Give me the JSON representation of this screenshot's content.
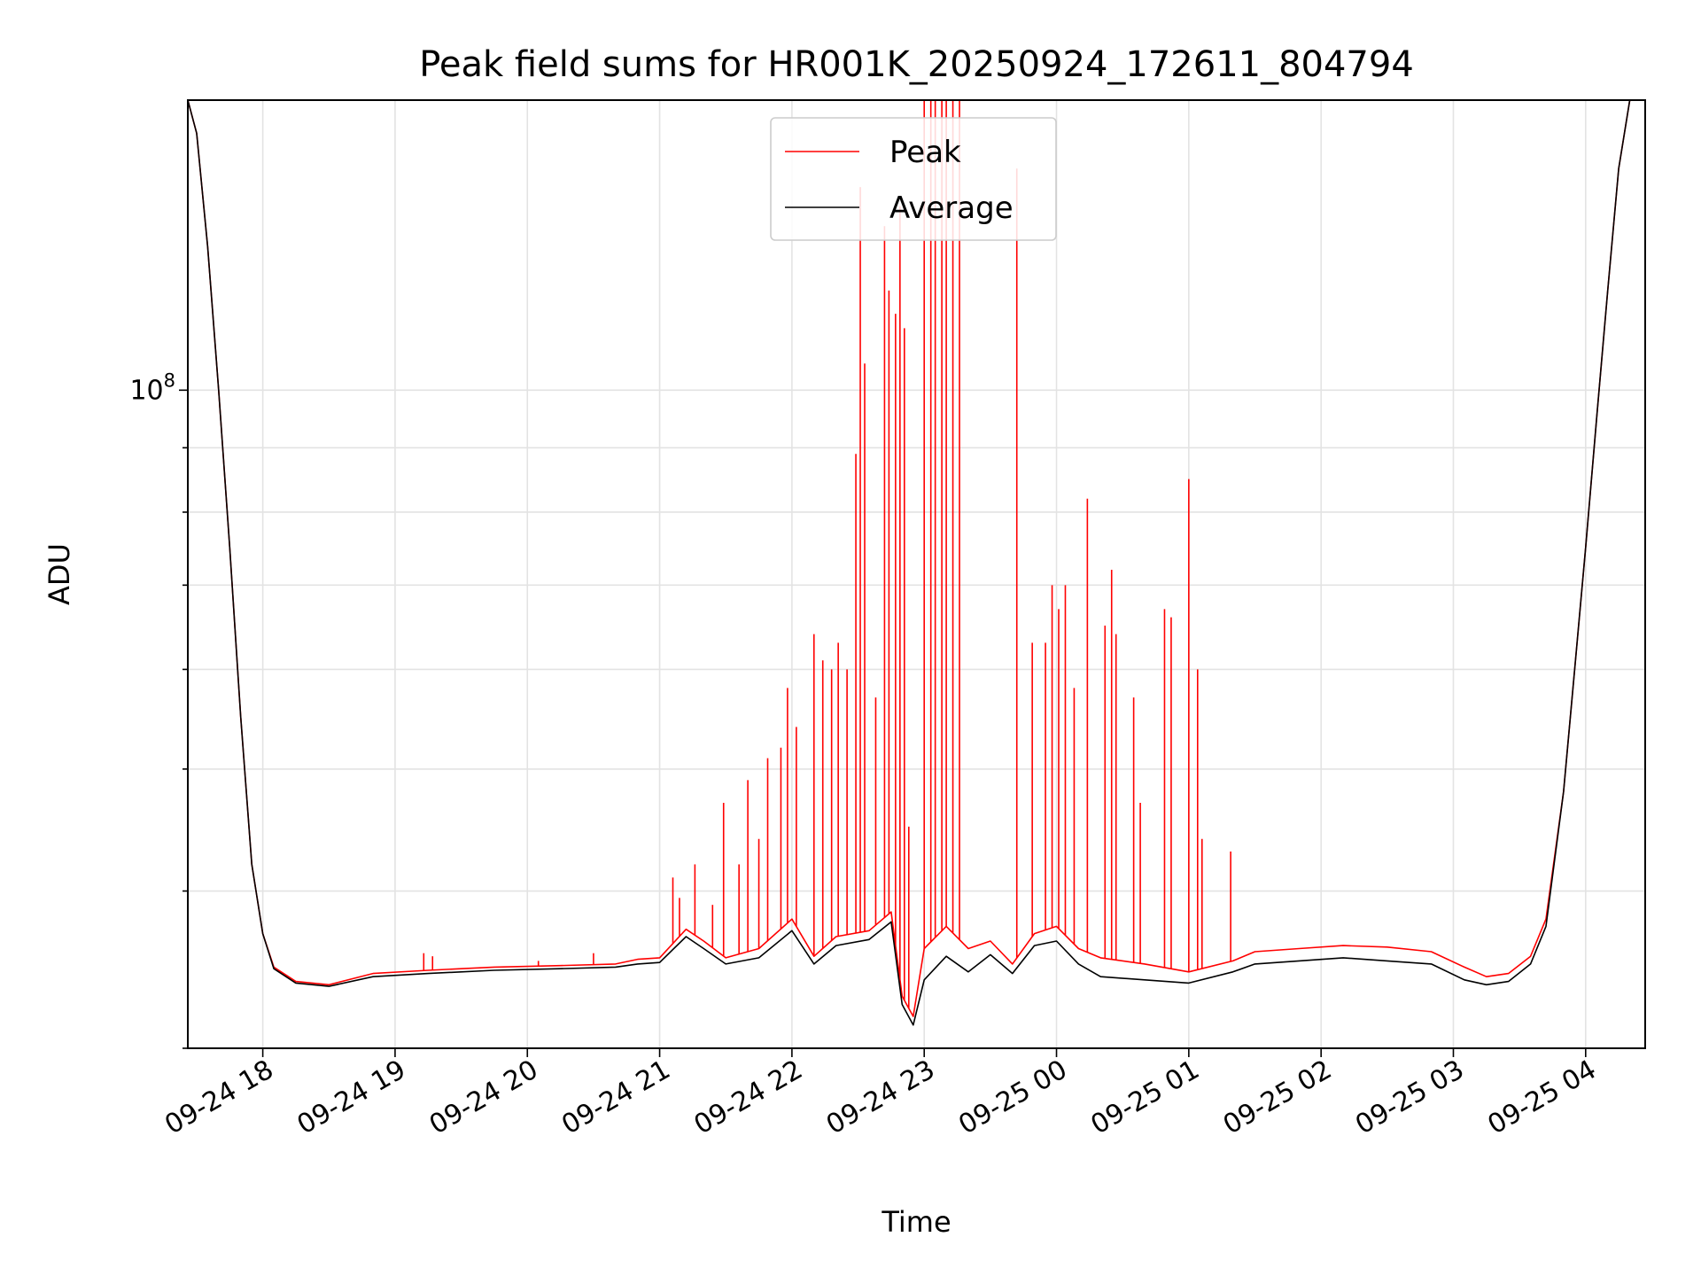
{
  "chart_data": {
    "type": "line",
    "title": "Peak field sums for HR001K_20250924_172611_804794",
    "xlabel": "Time",
    "ylabel": "ADU",
    "yscale": "log",
    "grid": true,
    "legend_position": "top-center",
    "x_range": [
      "2025-09-24T17:26",
      "2025-09-25T04:27"
    ],
    "x_tick_labels": [
      "09-24 18",
      "09-24 19",
      "09-24 20",
      "09-24 21",
      "09-24 22",
      "09-24 23",
      "09-25 00",
      "09-25 01",
      "09-25 02",
      "09-25 03",
      "09-25 04"
    ],
    "y_tick_label": {
      "base": "10",
      "exponent": "8"
    },
    "ylim": [
      30000000,
      170000000
    ],
    "series": [
      {
        "name": "Peak",
        "color": "#ff0000",
        "points": [
          [
            "2025-09-24T17:26",
            170000000
          ],
          [
            "2025-09-24T17:30",
            160000000
          ],
          [
            "2025-09-24T17:35",
            130000000
          ],
          [
            "2025-09-24T17:40",
            100000000
          ],
          [
            "2025-09-24T17:45",
            75000000
          ],
          [
            "2025-09-24T17:50",
            55000000
          ],
          [
            "2025-09-24T17:55",
            42000000
          ],
          [
            "2025-09-24T18:00",
            37000000
          ],
          [
            "2025-09-24T18:05",
            34800000
          ],
          [
            "2025-09-24T18:15",
            33900000
          ],
          [
            "2025-09-24T18:30",
            33700000
          ],
          [
            "2025-09-24T18:50",
            34400000
          ],
          [
            "2025-09-24T19:15",
            34600000
          ],
          [
            "2025-09-24T19:30",
            34700000
          ],
          [
            "2025-09-24T19:45",
            34800000
          ],
          [
            "2025-09-24T20:15",
            34900000
          ],
          [
            "2025-09-24T20:40",
            35000000
          ],
          [
            "2025-09-24T20:50",
            35300000
          ],
          [
            "2025-09-24T21:00",
            35400000
          ],
          [
            "2025-09-24T21:12",
            37300000
          ],
          [
            "2025-09-24T21:20",
            36500000
          ],
          [
            "2025-09-24T21:30",
            35400000
          ],
          [
            "2025-09-24T21:45",
            36000000
          ],
          [
            "2025-09-24T22:00",
            38000000
          ],
          [
            "2025-09-24T22:10",
            35500000
          ],
          [
            "2025-09-24T22:20",
            36800000
          ],
          [
            "2025-09-24T22:35",
            37200000
          ],
          [
            "2025-09-24T22:45",
            38500000
          ],
          [
            "2025-09-24T22:50",
            33000000
          ],
          [
            "2025-09-24T22:55",
            31800000
          ],
          [
            "2025-09-24T23:00",
            36000000
          ],
          [
            "2025-09-24T23:10",
            37500000
          ],
          [
            "2025-09-24T23:20",
            36000000
          ],
          [
            "2025-09-24T23:30",
            36500000
          ],
          [
            "2025-09-24T23:40",
            35000000
          ],
          [
            "2025-09-24T23:50",
            37000000
          ],
          [
            "2025-09-25T00:00",
            37500000
          ],
          [
            "2025-09-25T00:10",
            36000000
          ],
          [
            "2025-09-25T00:20",
            35400000
          ],
          [
            "2025-09-25T00:40",
            35000000
          ],
          [
            "2025-09-25T01:00",
            34500000
          ],
          [
            "2025-09-25T01:20",
            35200000
          ],
          [
            "2025-09-25T01:30",
            35800000
          ],
          [
            "2025-09-25T01:50",
            36000000
          ],
          [
            "2025-09-25T02:10",
            36200000
          ],
          [
            "2025-09-25T02:30",
            36100000
          ],
          [
            "2025-09-25T02:50",
            35800000
          ],
          [
            "2025-09-25T03:05",
            34800000
          ],
          [
            "2025-09-25T03:15",
            34200000
          ],
          [
            "2025-09-25T03:25",
            34400000
          ],
          [
            "2025-09-25T03:35",
            35500000
          ],
          [
            "2025-09-25T03:42",
            38000000
          ],
          [
            "2025-09-25T03:50",
            48000000
          ],
          [
            "2025-09-25T03:55",
            60000000
          ],
          [
            "2025-09-25T04:00",
            75000000
          ],
          [
            "2025-09-25T04:05",
            95000000
          ],
          [
            "2025-09-25T04:10",
            120000000
          ],
          [
            "2025-09-25T04:15",
            150000000
          ],
          [
            "2025-09-25T04:20",
            170000000
          ]
        ],
        "spikes": [
          [
            "2025-09-24T19:13",
            35700000
          ],
          [
            "2025-09-24T19:17",
            35500000
          ],
          [
            "2025-09-24T20:05",
            35200000
          ],
          [
            "2025-09-24T20:30",
            35700000
          ],
          [
            "2025-09-24T21:06",
            41000000
          ],
          [
            "2025-09-24T21:09",
            39500000
          ],
          [
            "2025-09-24T21:16",
            42000000
          ],
          [
            "2025-09-24T21:24",
            39000000
          ],
          [
            "2025-09-24T21:29",
            47000000
          ],
          [
            "2025-09-24T21:36",
            42000000
          ],
          [
            "2025-09-24T21:40",
            49000000
          ],
          [
            "2025-09-24T21:45",
            44000000
          ],
          [
            "2025-09-24T21:49",
            51000000
          ],
          [
            "2025-09-24T21:55",
            52000000
          ],
          [
            "2025-09-24T21:58",
            58000000
          ],
          [
            "2025-09-24T22:02",
            54000000
          ],
          [
            "2025-09-24T22:10",
            64000000
          ],
          [
            "2025-09-24T22:14",
            61000000
          ],
          [
            "2025-09-24T22:18",
            60000000
          ],
          [
            "2025-09-24T22:21",
            63000000
          ],
          [
            "2025-09-24T22:25",
            60000000
          ],
          [
            "2025-09-24T22:29",
            89000000
          ],
          [
            "2025-09-24T22:31",
            145000000
          ],
          [
            "2025-09-24T22:33",
            105000000
          ],
          [
            "2025-09-24T22:38",
            57000000
          ],
          [
            "2025-09-24T22:42",
            135000000
          ],
          [
            "2025-09-24T22:44",
            120000000
          ],
          [
            "2025-09-24T22:47",
            115000000
          ],
          [
            "2025-09-24T22:49",
            140000000
          ],
          [
            "2025-09-24T22:51",
            112000000
          ],
          [
            "2025-09-24T22:53",
            45000000
          ],
          [
            "2025-09-24T23:00",
            170000000
          ],
          [
            "2025-09-24T23:03",
            170000000
          ],
          [
            "2025-09-24T23:05",
            170000000
          ],
          [
            "2025-09-24T23:08",
            170000000
          ],
          [
            "2025-09-24T23:10",
            170000000
          ],
          [
            "2025-09-24T23:13",
            170000000
          ],
          [
            "2025-09-24T23:16",
            170000000
          ],
          [
            "2025-09-24T23:42",
            150000000
          ],
          [
            "2025-09-24T23:49",
            63000000
          ],
          [
            "2025-09-24T23:55",
            63000000
          ],
          [
            "2025-09-24T23:58",
            70000000
          ],
          [
            "2025-09-25T00:01",
            67000000
          ],
          [
            "2025-09-25T00:04",
            70000000
          ],
          [
            "2025-09-25T00:08",
            58000000
          ],
          [
            "2025-09-25T00:14",
            82000000
          ],
          [
            "2025-09-25T00:22",
            65000000
          ],
          [
            "2025-09-25T00:25",
            72000000
          ],
          [
            "2025-09-25T00:27",
            64000000
          ],
          [
            "2025-09-25T00:35",
            57000000
          ],
          [
            "2025-09-25T00:38",
            47000000
          ],
          [
            "2025-09-25T00:49",
            67000000
          ],
          [
            "2025-09-25T00:52",
            66000000
          ],
          [
            "2025-09-25T01:00",
            85000000
          ],
          [
            "2025-09-25T01:04",
            60000000
          ],
          [
            "2025-09-25T01:06",
            44000000
          ],
          [
            "2025-09-25T01:19",
            43000000
          ]
        ]
      },
      {
        "name": "Average",
        "color": "#000000",
        "points": [
          [
            "2025-09-24T17:26",
            170000000
          ],
          [
            "2025-09-24T17:30",
            160000000
          ],
          [
            "2025-09-24T17:35",
            130000000
          ],
          [
            "2025-09-24T17:40",
            100000000
          ],
          [
            "2025-09-24T17:45",
            75000000
          ],
          [
            "2025-09-24T17:50",
            55000000
          ],
          [
            "2025-09-24T17:55",
            42000000
          ],
          [
            "2025-09-24T18:00",
            37000000
          ],
          [
            "2025-09-24T18:05",
            34700000
          ],
          [
            "2025-09-24T18:15",
            33800000
          ],
          [
            "2025-09-24T18:30",
            33600000
          ],
          [
            "2025-09-24T18:50",
            34200000
          ],
          [
            "2025-09-24T19:15",
            34400000
          ],
          [
            "2025-09-24T19:30",
            34500000
          ],
          [
            "2025-09-24T19:45",
            34600000
          ],
          [
            "2025-09-24T20:15",
            34700000
          ],
          [
            "2025-09-24T20:40",
            34800000
          ],
          [
            "2025-09-24T20:50",
            35000000
          ],
          [
            "2025-09-24T21:00",
            35100000
          ],
          [
            "2025-09-24T21:12",
            36800000
          ],
          [
            "2025-09-24T21:20",
            36000000
          ],
          [
            "2025-09-24T21:30",
            35000000
          ],
          [
            "2025-09-24T21:45",
            35400000
          ],
          [
            "2025-09-24T22:00",
            37200000
          ],
          [
            "2025-09-24T22:10",
            35000000
          ],
          [
            "2025-09-24T22:20",
            36200000
          ],
          [
            "2025-09-24T22:35",
            36600000
          ],
          [
            "2025-09-24T22:45",
            37800000
          ],
          [
            "2025-09-24T22:50",
            32500000
          ],
          [
            "2025-09-24T22:55",
            31300000
          ],
          [
            "2025-09-24T23:00",
            34000000
          ],
          [
            "2025-09-24T23:10",
            35500000
          ],
          [
            "2025-09-24T23:20",
            34500000
          ],
          [
            "2025-09-24T23:30",
            35600000
          ],
          [
            "2025-09-24T23:40",
            34400000
          ],
          [
            "2025-09-24T23:50",
            36200000
          ],
          [
            "2025-09-25T00:00",
            36500000
          ],
          [
            "2025-09-25T00:10",
            35000000
          ],
          [
            "2025-09-25T00:20",
            34200000
          ],
          [
            "2025-09-25T00:40",
            34000000
          ],
          [
            "2025-09-25T01:00",
            33800000
          ],
          [
            "2025-09-25T01:20",
            34500000
          ],
          [
            "2025-09-25T01:30",
            35000000
          ],
          [
            "2025-09-25T01:50",
            35200000
          ],
          [
            "2025-09-25T02:10",
            35400000
          ],
          [
            "2025-09-25T02:30",
            35200000
          ],
          [
            "2025-09-25T02:50",
            35000000
          ],
          [
            "2025-09-25T03:05",
            34000000
          ],
          [
            "2025-09-25T03:15",
            33700000
          ],
          [
            "2025-09-25T03:25",
            33900000
          ],
          [
            "2025-09-25T03:35",
            35000000
          ],
          [
            "2025-09-25T03:42",
            37500000
          ],
          [
            "2025-09-25T03:50",
            48000000
          ],
          [
            "2025-09-25T03:55",
            60000000
          ],
          [
            "2025-09-25T04:00",
            75000000
          ],
          [
            "2025-09-25T04:05",
            95000000
          ],
          [
            "2025-09-25T04:10",
            120000000
          ],
          [
            "2025-09-25T04:15",
            150000000
          ],
          [
            "2025-09-25T04:20",
            170000000
          ]
        ]
      }
    ]
  }
}
